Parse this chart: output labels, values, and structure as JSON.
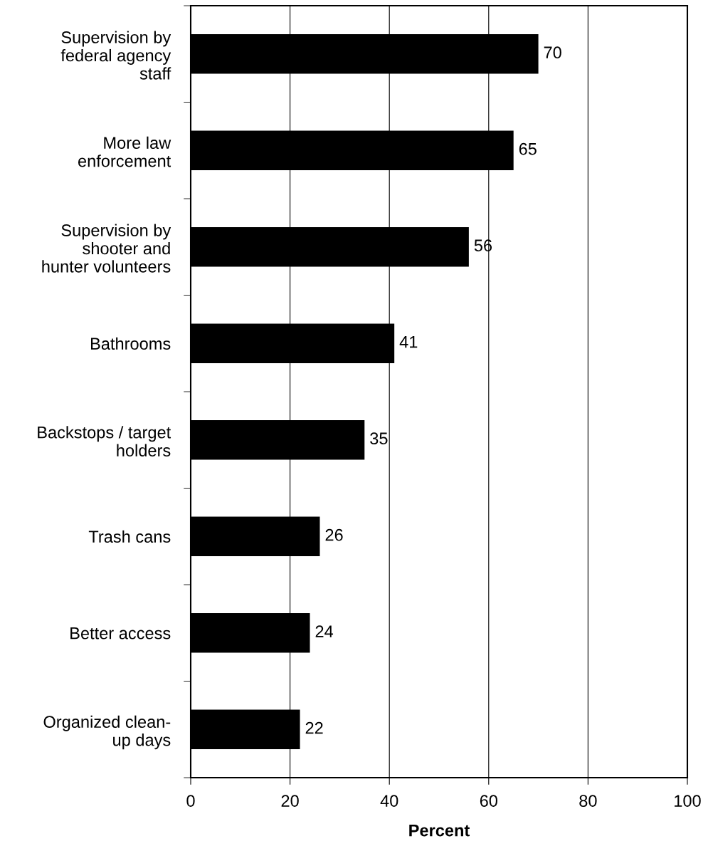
{
  "chart_data": {
    "type": "bar",
    "orientation": "horizontal",
    "xlabel": "Percent",
    "categories": [
      "Supervision by\nfederal agency\nstaff",
      "More law\nenforcement",
      "Supervision by\nshooter and\nhunter volunteers",
      "Bathrooms",
      "Backstops / target\nholders",
      "Trash cans",
      "Better access",
      "Organized clean-\nup days"
    ],
    "values": [
      70,
      65,
      56,
      41,
      35,
      26,
      24,
      22
    ],
    "color": "#000000",
    "data_labels": true,
    "xlim": [
      0,
      100
    ],
    "xticks": [
      0,
      20,
      40,
      60,
      80,
      100
    ],
    "grid": "x"
  }
}
